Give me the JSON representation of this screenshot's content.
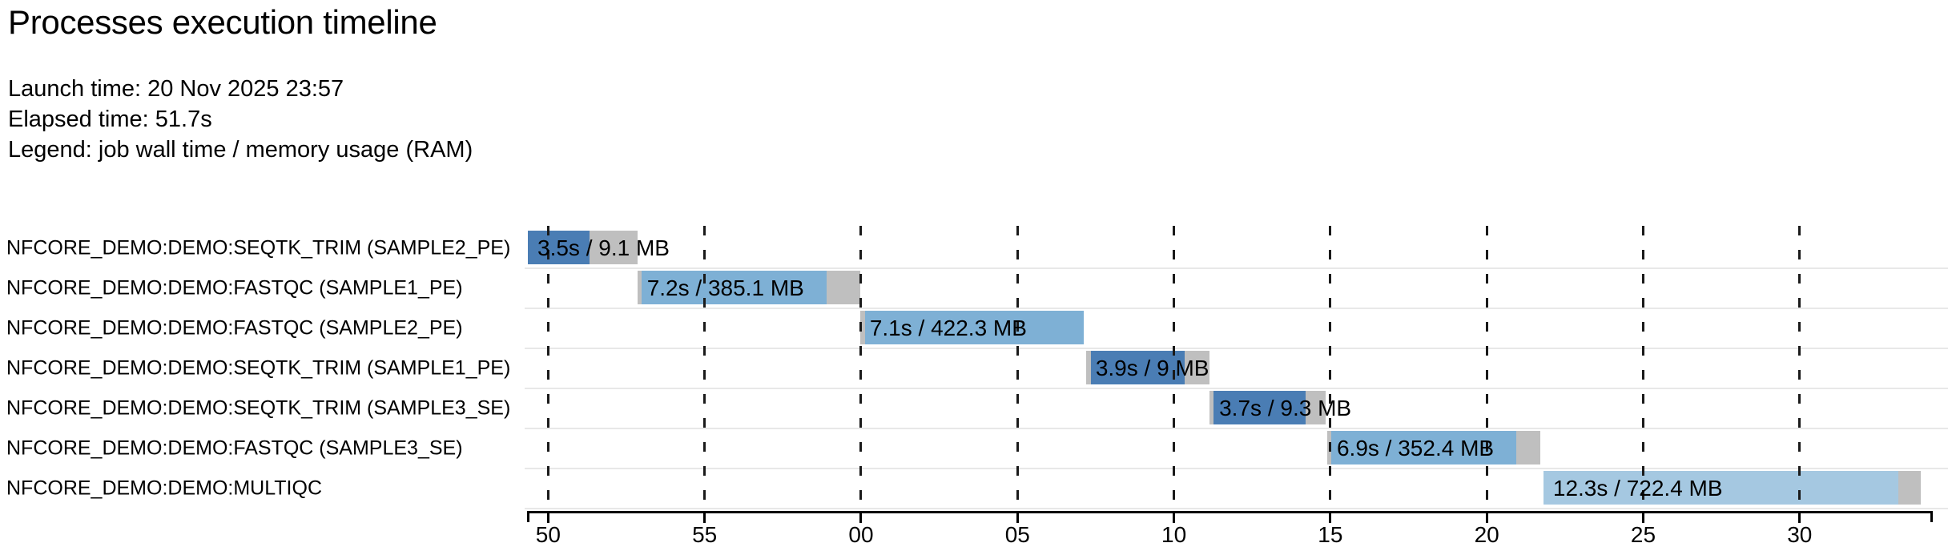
{
  "header": {
    "title": "Processes execution timeline",
    "launch_time": "Launch time: 20 Nov 2025 23:57",
    "elapsed_time": "Elapsed time: 51.7s",
    "legend": "Legend: job wall time / memory usage (RAM)"
  },
  "colors": {
    "seqtk_trim": "#4a7db4",
    "fastqc": "#7eb0d5",
    "multiqc": "#a5c8e1",
    "queue_gray": "#bfbfbf",
    "row_separator": "#e8e8e8",
    "axis": "#000000",
    "gridline": "#1a1a1a"
  },
  "chart_data": {
    "type": "bar",
    "variant": "horizontal-gantt-timeline",
    "title": "Processes execution timeline",
    "x_axis": {
      "domain_seconds": [
        49.35,
        94.2
      ],
      "tick_seconds": [
        50,
        55,
        60,
        65,
        70,
        75,
        80,
        85,
        90
      ],
      "tick_labels": [
        "50",
        "55",
        "00",
        "05",
        "10",
        "15",
        "20",
        "25",
        "30"
      ],
      "grid": "dashed-vertical"
    },
    "legend_note": "job wall time / memory usage (RAM)",
    "processes": [
      {
        "name": "NFCORE_DEMO:DEMO:SEQTK_TRIM (SAMPLE2_PE)",
        "bar_label": "3.5s / 9.1 MB",
        "color_key": "seqtk_trim",
        "submit_s": 49.35,
        "start_s": 49.35,
        "run_end_s": 51.33,
        "complete_s": 52.85
      },
      {
        "name": "NFCORE_DEMO:DEMO:FASTQC (SAMPLE1_PE)",
        "bar_label": "7.2s / 385.1 MB",
        "color_key": "fastqc",
        "submit_s": 52.85,
        "start_s": 52.98,
        "run_end_s": 58.9,
        "complete_s": 59.97
      },
      {
        "name": "NFCORE_DEMO:DEMO:FASTQC (SAMPLE2_PE)",
        "bar_label": "7.1s / 422.3 MB",
        "color_key": "fastqc",
        "submit_s": 59.97,
        "start_s": 60.13,
        "run_end_s": 67.12,
        "complete_s": 67.12
      },
      {
        "name": "NFCORE_DEMO:DEMO:SEQTK_TRIM (SAMPLE1_PE)",
        "bar_label": "3.9s / 9 MB",
        "color_key": "seqtk_trim",
        "submit_s": 67.19,
        "start_s": 67.35,
        "run_end_s": 70.34,
        "complete_s": 71.14
      },
      {
        "name": "NFCORE_DEMO:DEMO:SEQTK_TRIM (SAMPLE3_SE)",
        "bar_label": "3.7s / 9.3 MB",
        "color_key": "seqtk_trim",
        "submit_s": 71.14,
        "start_s": 71.27,
        "run_end_s": 74.21,
        "complete_s": 74.85
      },
      {
        "name": "NFCORE_DEMO:DEMO:FASTQC (SAMPLE3_SE)",
        "bar_label": "6.9s / 352.4 MB",
        "color_key": "fastqc",
        "submit_s": 74.9,
        "start_s": 75.03,
        "run_end_s": 80.94,
        "complete_s": 81.71
      },
      {
        "name": "NFCORE_DEMO:DEMO:MULTIQC",
        "bar_label": "12.3s / 722.4 MB",
        "color_key": "multiqc",
        "submit_s": 81.81,
        "start_s": 81.81,
        "run_end_s": 93.16,
        "complete_s": 93.87
      }
    ]
  }
}
